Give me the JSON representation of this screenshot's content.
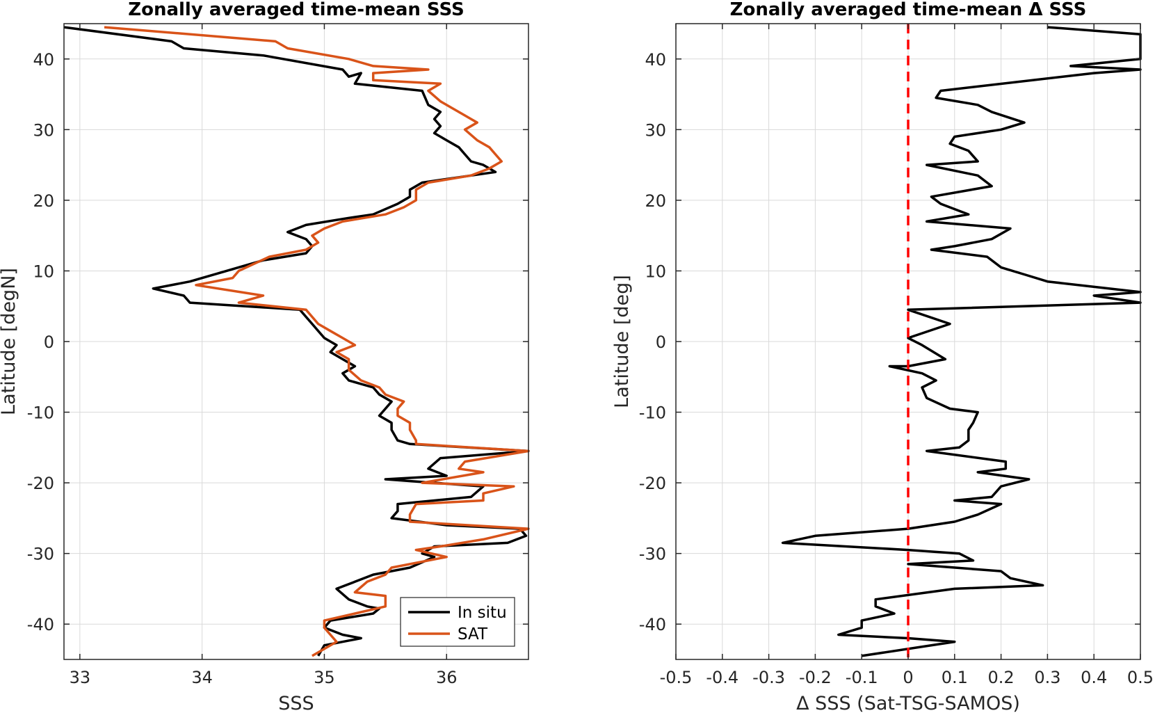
{
  "chart_data": [
    {
      "type": "line",
      "title": "Zonally averaged time-mean SSS",
      "xlabel": "SSS",
      "ylabel": "Latitude [degN]",
      "xlim": [
        32.87,
        36.67
      ],
      "ylim": [
        -45,
        45
      ],
      "xticks": [
        33,
        34,
        35,
        36
      ],
      "yticks": [
        -40,
        -30,
        -20,
        -10,
        0,
        10,
        20,
        30,
        40
      ],
      "xtick_labels": [
        "33",
        "34",
        "35",
        "36"
      ],
      "ytick_labels": [
        "-40",
        "-30",
        "-20",
        "-10",
        "0",
        "10",
        "20",
        "30",
        "40"
      ],
      "grid": true,
      "legend": {
        "placement": "bottom-right",
        "entries": [
          "In situ",
          "SAT"
        ]
      },
      "series": [
        {
          "name": "In situ",
          "color": "#000000",
          "points": [
            [
              32.87,
              44.5
            ],
            [
              33.75,
              42.5
            ],
            [
              33.85,
              41.5
            ],
            [
              34.5,
              40.5
            ],
            [
              35.15,
              38.5
            ],
            [
              35.2,
              37.5
            ],
            [
              35.3,
              38.0
            ],
            [
              35.25,
              36.5
            ],
            [
              35.8,
              35.5
            ],
            [
              35.85,
              33.5
            ],
            [
              35.95,
              32.5
            ],
            [
              35.9,
              31.5
            ],
            [
              35.95,
              30.5
            ],
            [
              35.9,
              29.5
            ],
            [
              36.0,
              28.5
            ],
            [
              36.1,
              27.5
            ],
            [
              36.15,
              26.5
            ],
            [
              36.2,
              25.5
            ],
            [
              36.3,
              25.0
            ],
            [
              36.4,
              24.0
            ],
            [
              36.2,
              23.5
            ],
            [
              35.8,
              22.5
            ],
            [
              35.7,
              21.5
            ],
            [
              35.7,
              20.5
            ],
            [
              35.6,
              19.5
            ],
            [
              35.4,
              18.0
            ],
            [
              35.2,
              17.5
            ],
            [
              34.85,
              16.5
            ],
            [
              34.7,
              15.5
            ],
            [
              34.85,
              14.5
            ],
            [
              34.9,
              13.5
            ],
            [
              34.85,
              12.5
            ],
            [
              34.5,
              11.5
            ],
            [
              34.2,
              10.0
            ],
            [
              33.9,
              8.5
            ],
            [
              33.6,
              7.5
            ],
            [
              33.85,
              6.5
            ],
            [
              33.9,
              5.5
            ],
            [
              34.8,
              4.5
            ],
            [
              34.85,
              3.5
            ],
            [
              34.9,
              2.5
            ],
            [
              34.95,
              1.5
            ],
            [
              35.0,
              0.5
            ],
            [
              35.1,
              -0.5
            ],
            [
              35.05,
              -1.5
            ],
            [
              35.15,
              -2.5
            ],
            [
              35.25,
              -3.5
            ],
            [
              35.15,
              -4.5
            ],
            [
              35.2,
              -5.5
            ],
            [
              35.4,
              -6.5
            ],
            [
              35.45,
              -7.5
            ],
            [
              35.55,
              -8.5
            ],
            [
              35.5,
              -9.5
            ],
            [
              35.45,
              -10.5
            ],
            [
              35.55,
              -11.5
            ],
            [
              35.55,
              -12.5
            ],
            [
              35.6,
              -14.0
            ],
            [
              35.7,
              -14.5
            ],
            [
              36.67,
              -15.5
            ],
            [
              35.95,
              -16.5
            ],
            [
              35.85,
              -18.0
            ],
            [
              36.0,
              -19.0
            ],
            [
              35.5,
              -19.5
            ],
            [
              35.9,
              -20.0
            ],
            [
              36.3,
              -20.5
            ],
            [
              36.2,
              -22.0
            ],
            [
              35.6,
              -23.0
            ],
            [
              35.6,
              -24.0
            ],
            [
              35.55,
              -25.0
            ],
            [
              36.0,
              -26.0
            ],
            [
              36.6,
              -26.5
            ],
            [
              36.65,
              -27.5
            ],
            [
              36.5,
              -28.5
            ],
            [
              35.9,
              -29.0
            ],
            [
              35.8,
              -30.0
            ],
            [
              35.9,
              -30.5
            ],
            [
              35.7,
              -32.0
            ],
            [
              35.4,
              -33.0
            ],
            [
              35.25,
              -34.0
            ],
            [
              35.1,
              -35.0
            ],
            [
              35.2,
              -36.5
            ],
            [
              35.35,
              -37.5
            ],
            [
              35.45,
              -37.8
            ],
            [
              35.4,
              -38.5
            ],
            [
              35.05,
              -39.5
            ],
            [
              35.0,
              -40.5
            ],
            [
              35.15,
              -41.5
            ],
            [
              35.3,
              -42.0
            ],
            [
              35.0,
              -43.0
            ],
            [
              34.95,
              -44.5
            ]
          ]
        },
        {
          "name": "SAT",
          "color": "#d95319",
          "points": [
            [
              33.2,
              44.5
            ],
            [
              34.6,
              42.5
            ],
            [
              34.7,
              41.5
            ],
            [
              35.2,
              40.0
            ],
            [
              35.4,
              39.0
            ],
            [
              35.85,
              38.5
            ],
            [
              35.4,
              38.0
            ],
            [
              35.4,
              37.0
            ],
            [
              35.95,
              36.5
            ],
            [
              35.85,
              35.5
            ],
            [
              35.95,
              34.0
            ],
            [
              36.05,
              33.0
            ],
            [
              36.15,
              32.0
            ],
            [
              36.2,
              31.5
            ],
            [
              36.25,
              31.0
            ],
            [
              36.15,
              30.0
            ],
            [
              36.25,
              28.5
            ],
            [
              36.35,
              27.5
            ],
            [
              36.4,
              26.5
            ],
            [
              36.45,
              25.5
            ],
            [
              36.35,
              24.5
            ],
            [
              36.2,
              23.5
            ],
            [
              35.85,
              22.5
            ],
            [
              35.75,
              21.5
            ],
            [
              35.75,
              20.0
            ],
            [
              35.65,
              19.0
            ],
            [
              35.5,
              18.0
            ],
            [
              35.15,
              17.0
            ],
            [
              35.0,
              16.0
            ],
            [
              34.9,
              15.0
            ],
            [
              34.95,
              14.0
            ],
            [
              34.85,
              13.0
            ],
            [
              34.55,
              12.0
            ],
            [
              34.3,
              10.0
            ],
            [
              34.25,
              9.0
            ],
            [
              33.95,
              8.0
            ],
            [
              34.5,
              6.5
            ],
            [
              34.3,
              5.5
            ],
            [
              34.85,
              4.5
            ],
            [
              34.9,
              3.5
            ],
            [
              34.95,
              2.5
            ],
            [
              35.05,
              1.5
            ],
            [
              35.15,
              0.5
            ],
            [
              35.25,
              -0.5
            ],
            [
              35.1,
              -1.5
            ],
            [
              35.2,
              -2.5
            ],
            [
              35.2,
              -4.0
            ],
            [
              35.3,
              -5.5
            ],
            [
              35.45,
              -6.5
            ],
            [
              35.5,
              -7.5
            ],
            [
              35.65,
              -8.5
            ],
            [
              35.6,
              -9.5
            ],
            [
              35.6,
              -10.5
            ],
            [
              35.7,
              -11.5
            ],
            [
              35.7,
              -12.5
            ],
            [
              35.75,
              -14.0
            ],
            [
              35.75,
              -14.5
            ],
            [
              36.67,
              -15.5
            ],
            [
              36.15,
              -17.0
            ],
            [
              36.1,
              -18.0
            ],
            [
              36.3,
              -18.5
            ],
            [
              35.8,
              -20.0
            ],
            [
              36.55,
              -20.5
            ],
            [
              36.3,
              -21.5
            ],
            [
              36.3,
              -22.5
            ],
            [
              35.75,
              -23.0
            ],
            [
              35.7,
              -24.5
            ],
            [
              35.7,
              -25.5
            ],
            [
              36.67,
              -26.5
            ],
            [
              36.3,
              -28.0
            ],
            [
              35.95,
              -29.0
            ],
            [
              35.75,
              -29.5
            ],
            [
              36.0,
              -30.5
            ],
            [
              35.55,
              -32.0
            ],
            [
              35.5,
              -33.0
            ],
            [
              35.35,
              -34.0
            ],
            [
              35.25,
              -35.5
            ],
            [
              35.5,
              -36.0
            ],
            [
              35.5,
              -37.5
            ],
            [
              35.25,
              -38.5
            ],
            [
              35.0,
              -39.5
            ],
            [
              35.0,
              -40.5
            ],
            [
              35.05,
              -41.5
            ],
            [
              35.1,
              -42.5
            ],
            [
              34.9,
              -44.5
            ]
          ]
        }
      ]
    },
    {
      "type": "line",
      "title": "Zonally averaged time-mean Δ SSS",
      "xlabel": "Δ SSS (Sat-TSG-SAMOS)",
      "ylabel": "Latitude [deg]",
      "xlim": [
        -0.5,
        0.5
      ],
      "ylim": [
        -45,
        45
      ],
      "xticks": [
        -0.5,
        -0.4,
        -0.3,
        -0.2,
        -0.1,
        0,
        0.1,
        0.2,
        0.3,
        0.4,
        0.5
      ],
      "yticks": [
        -40,
        -30,
        -20,
        -10,
        0,
        10,
        20,
        30,
        40
      ],
      "xtick_labels": [
        "-0.5",
        "-0.4",
        "-0.3",
        "-0.2",
        "-0.1",
        "0",
        "0.1",
        "0.2",
        "0.3",
        "0.4",
        "0.5"
      ],
      "ytick_labels": [
        "-40",
        "-30",
        "-20",
        "-10",
        "0",
        "10",
        "20",
        "30",
        "40"
      ],
      "grid": true,
      "reference_line": {
        "x": 0,
        "color": "#ff0000",
        "style": "dashed"
      },
      "series": [
        {
          "color": "#000000",
          "points": [
            [
              0.3,
              44.5
            ],
            [
              0.5,
              43.5
            ],
            [
              0.5,
              40.0
            ],
            [
              0.35,
              39.0
            ],
            [
              0.5,
              38.5
            ],
            [
              0.4,
              38.0
            ],
            [
              0.07,
              35.5
            ],
            [
              0.06,
              34.5
            ],
            [
              0.15,
              33.5
            ],
            [
              0.18,
              32.5
            ],
            [
              0.25,
              31.0
            ],
            [
              0.2,
              30.0
            ],
            [
              0.1,
              29.0
            ],
            [
              0.09,
              28.0
            ],
            [
              0.13,
              27.0
            ],
            [
              0.15,
              25.5
            ],
            [
              0.04,
              25.0
            ],
            [
              0.15,
              23.5
            ],
            [
              0.18,
              22.0
            ],
            [
              0.05,
              20.5
            ],
            [
              0.07,
              19.5
            ],
            [
              0.13,
              18.0
            ],
            [
              0.04,
              17.0
            ],
            [
              0.22,
              16.0
            ],
            [
              0.18,
              14.5
            ],
            [
              0.1,
              13.5
            ],
            [
              0.05,
              13.0
            ],
            [
              0.17,
              12.0
            ],
            [
              0.2,
              10.5
            ],
            [
              0.25,
              9.5
            ],
            [
              0.3,
              8.5
            ],
            [
              0.5,
              7.0
            ],
            [
              0.4,
              6.5
            ],
            [
              0.5,
              5.5
            ],
            [
              0.0,
              4.5
            ],
            [
              0.09,
              2.5
            ],
            [
              0.0,
              0.5
            ],
            [
              0.03,
              -0.5
            ],
            [
              0.08,
              -2.5
            ],
            [
              0.0,
              -3.5
            ],
            [
              -0.04,
              -3.5
            ],
            [
              0.03,
              -4.5
            ],
            [
              0.06,
              -5.5
            ],
            [
              0.03,
              -6.5
            ],
            [
              0.04,
              -8.0
            ],
            [
              0.09,
              -9.5
            ],
            [
              0.15,
              -10.0
            ],
            [
              0.14,
              -11.5
            ],
            [
              0.13,
              -12.5
            ],
            [
              0.13,
              -14.0
            ],
            [
              0.11,
              -15.0
            ],
            [
              0.04,
              -15.5
            ],
            [
              0.21,
              -17.0
            ],
            [
              0.21,
              -18.0
            ],
            [
              0.15,
              -18.5
            ],
            [
              0.26,
              -19.5
            ],
            [
              0.2,
              -20.5
            ],
            [
              0.18,
              -22.0
            ],
            [
              0.1,
              -22.5
            ],
            [
              0.2,
              -23.0
            ],
            [
              0.15,
              -24.5
            ],
            [
              0.1,
              -25.5
            ],
            [
              0.0,
              -26.5
            ],
            [
              -0.2,
              -27.5
            ],
            [
              -0.27,
              -28.5
            ],
            [
              0.0,
              -29.5
            ],
            [
              0.11,
              -30.0
            ],
            [
              0.14,
              -31.0
            ],
            [
              0.0,
              -31.5
            ],
            [
              0.2,
              -32.5
            ],
            [
              0.22,
              -33.5
            ],
            [
              0.29,
              -34.5
            ],
            [
              0.1,
              -35.0
            ],
            [
              -0.07,
              -36.5
            ],
            [
              -0.07,
              -37.5
            ],
            [
              -0.03,
              -38.5
            ],
            [
              -0.1,
              -39.5
            ],
            [
              -0.1,
              -40.5
            ],
            [
              -0.15,
              -41.5
            ],
            [
              0.0,
              -42.0
            ],
            [
              0.1,
              -42.5
            ],
            [
              -0.1,
              -44.5
            ]
          ]
        }
      ]
    }
  ]
}
